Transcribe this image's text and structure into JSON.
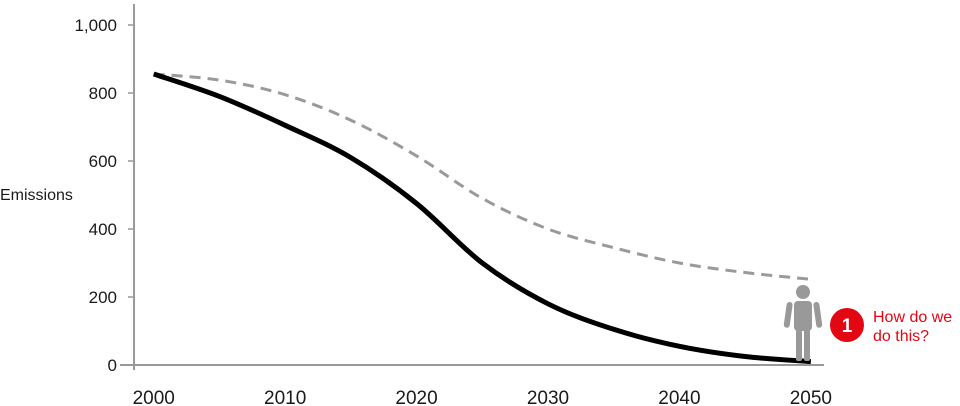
{
  "chart_data": {
    "type": "line",
    "ylabel": "Emissions",
    "xlabel": "",
    "ylim": [
      0,
      1000
    ],
    "xlim": [
      1998.5,
      2051
    ],
    "y_ticks": [
      0,
      200,
      400,
      600,
      800,
      1000
    ],
    "y_tick_labels": [
      "0",
      "200",
      "400",
      "600",
      "800",
      "1,000"
    ],
    "x_ticks": [
      2000,
      2010,
      2020,
      2030,
      2040,
      2050
    ],
    "x_tick_labels": [
      "2000",
      "2010",
      "2020",
      "2030",
      "2040",
      "2050"
    ],
    "grid": false,
    "series": [
      {
        "style": "dashed",
        "color": "#9a9a9a",
        "x": [
          2000,
          2005,
          2010,
          2015,
          2020,
          2025,
          2030,
          2035,
          2040,
          2045,
          2050
        ],
        "y": [
          856,
          838,
          795,
          720,
          615,
          490,
          400,
          345,
          300,
          272,
          252
        ]
      },
      {
        "style": "solid",
        "color": "#000000",
        "x": [
          2000,
          2005,
          2010,
          2015,
          2020,
          2025,
          2030,
          2035,
          2040,
          2045,
          2050
        ],
        "y": [
          856,
          790,
          705,
          610,
          475,
          300,
          180,
          105,
          55,
          25,
          10
        ]
      }
    ],
    "annotation": {
      "x": 2050,
      "badge_number": "1",
      "badge_color": "#e30613",
      "text_lines": [
        "How do we",
        "do this?"
      ],
      "text_color": "#e30613",
      "figure_icon": "person-icon",
      "figure_color": "#999999"
    }
  }
}
